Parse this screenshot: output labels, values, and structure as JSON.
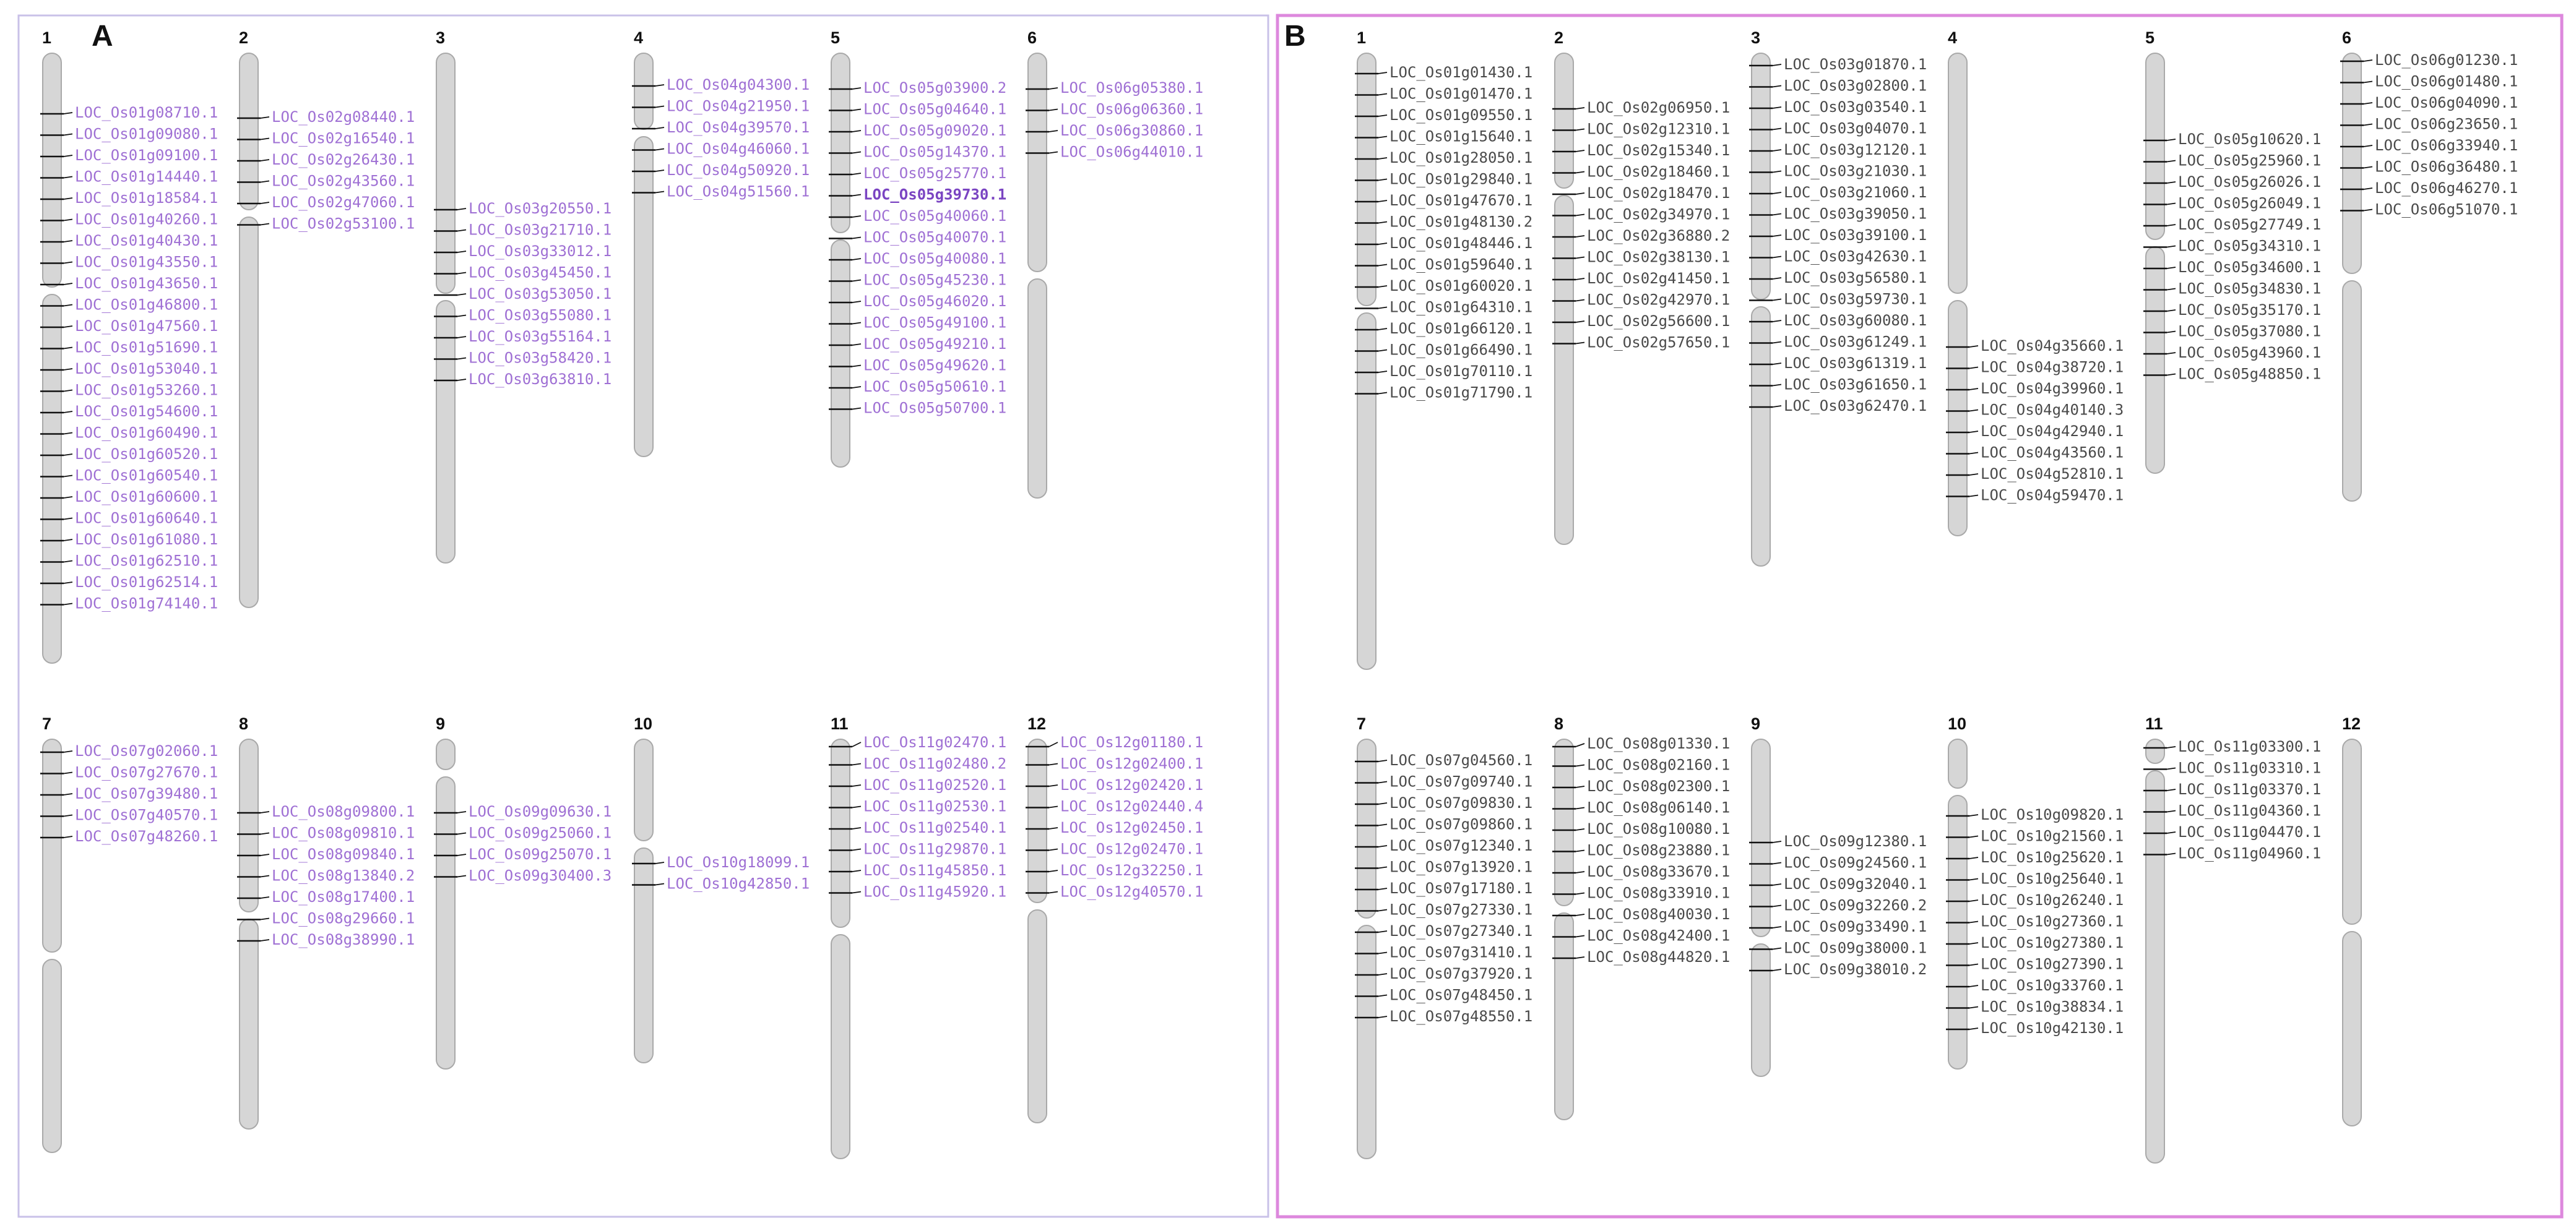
{
  "colors": {
    "panel_a_label": "#9f70d4",
    "panel_a_highlight": "#7a44c2",
    "panel_b_label": "#4a4a4a",
    "panel_a_border": "#c9c1e8",
    "panel_b_border": "#dd88dd",
    "chromosome_fill": "#d6d6d6",
    "chromosome_edge": "#a9a9a9",
    "tick": "#111111"
  },
  "panels": [
    {
      "letter": "A",
      "label_color": "#9f70d4",
      "chromosomes": [
        {
          "number": "1",
          "genes": [
            "LOC_Os01g08710.1",
            "LOC_Os01g09080.1",
            "LOC_Os01g09100.1",
            "LOC_Os01g14440.1",
            "LOC_Os01g18584.1",
            "LOC_Os01g40260.1",
            "LOC_Os01g40430.1",
            "LOC_Os01g43550.1",
            "LOC_Os01g43650.1",
            "LOC_Os01g46800.1",
            "LOC_Os01g47560.1",
            "LOC_Os01g51690.1",
            "LOC_Os01g53040.1",
            "LOC_Os01g53260.1",
            "LOC_Os01g54600.1",
            "LOC_Os01g60490.1",
            "LOC_Os01g60520.1",
            "LOC_Os01g60540.1",
            "LOC_Os01g60600.1",
            "LOC_Os01g60640.1",
            "LOC_Os01g61080.1",
            "LOC_Os01g62510.1",
            "LOC_Os01g62514.1",
            "LOC_Os01g74140.1"
          ]
        },
        {
          "number": "2",
          "genes": [
            "LOC_Os02g08440.1",
            "LOC_Os02g16540.1",
            "LOC_Os02g26430.1",
            "LOC_Os02g43560.1",
            "LOC_Os02g47060.1",
            "LOC_Os02g53100.1"
          ]
        },
        {
          "number": "3",
          "genes": [
            "LOC_Os03g20550.1",
            "LOC_Os03g21710.1",
            "LOC_Os03g33012.1",
            "LOC_Os03g45450.1",
            "LOC_Os03g53050.1",
            "LOC_Os03g55080.1",
            "LOC_Os03g55164.1",
            "LOC_Os03g58420.1",
            "LOC_Os03g63810.1"
          ]
        },
        {
          "number": "4",
          "genes": [
            "LOC_Os04g04300.1",
            "LOC_Os04g21950.1",
            "LOC_Os04g39570.1",
            "LOC_Os04g46060.1",
            "LOC_Os04g50920.1",
            "LOC_Os04g51560.1"
          ]
        },
        {
          "number": "5",
          "genes": [
            "LOC_Os05g03900.2",
            "LOC_Os05g04640.1",
            "LOC_Os05g09020.1",
            "LOC_Os05g14370.1",
            "LOC_Os05g25770.1",
            "LOC_Os05g39730.1",
            "LOC_Os05g40060.1",
            "LOC_Os05g40070.1",
            "LOC_Os05g40080.1",
            "LOC_Os05g45230.1",
            "LOC_Os05g46020.1",
            "LOC_Os05g49100.1",
            "LOC_Os05g49210.1",
            "LOC_Os05g49620.1",
            "LOC_Os05g50610.1",
            "LOC_Os05g50700.1"
          ]
        },
        {
          "number": "6",
          "genes": [
            "LOC_Os06g05380.1",
            "LOC_Os06g06360.1",
            "LOC_Os06g30860.1",
            "LOC_Os06g44010.1"
          ]
        },
        {
          "number": "7",
          "genes": [
            "LOC_Os07g02060.1",
            "LOC_Os07g27670.1",
            "LOC_Os07g39480.1",
            "LOC_Os07g40570.1",
            "LOC_Os07g48260.1"
          ]
        },
        {
          "number": "8",
          "genes": [
            "LOC_Os08g09800.1",
            "LOC_Os08g09810.1",
            "LOC_Os08g09840.1",
            "LOC_Os08g13840.2",
            "LOC_Os08g17400.1",
            "LOC_Os08g29660.1",
            "LOC_Os08g38990.1"
          ]
        },
        {
          "number": "9",
          "genes": [
            "LOC_Os09g09630.1",
            "LOC_Os09g25060.1",
            "LOC_Os09g25070.1",
            "LOC_Os09g30400.3"
          ]
        },
        {
          "number": "10",
          "genes": [
            "LOC_Os10g18099.1",
            "LOC_Os10g42850.1"
          ]
        },
        {
          "number": "11",
          "genes": [
            "LOC_Os11g02470.1",
            "LOC_Os11g02480.2",
            "LOC_Os11g02520.1",
            "LOC_Os11g02530.1",
            "LOC_Os11g02540.1",
            "LOC_Os11g29870.1",
            "LOC_Os11g45850.1",
            "LOC_Os11g45920.1"
          ]
        },
        {
          "number": "12",
          "genes": [
            "LOC_Os12g01180.1",
            "LOC_Os12g02400.1",
            "LOC_Os12g02420.1",
            "LOC_Os12g02440.4",
            "LOC_Os12g02450.1",
            "LOC_Os12g02470.1",
            "LOC_Os12g32250.1",
            "LOC_Os12g40570.1"
          ]
        }
      ]
    },
    {
      "letter": "B",
      "label_color": "#4a4a4a",
      "chromosomes": [
        {
          "number": "1",
          "genes": [
            "LOC_Os01g01430.1",
            "LOC_Os01g01470.1",
            "LOC_Os01g09550.1",
            "LOC_Os01g15640.1",
            "LOC_Os01g28050.1",
            "LOC_Os01g29840.1",
            "LOC_Os01g47670.1",
            "LOC_Os01g48130.2",
            "LOC_Os01g48446.1",
            "LOC_Os01g59640.1",
            "LOC_Os01g60020.1",
            "LOC_Os01g64310.1",
            "LOC_Os01g66120.1",
            "LOC_Os01g66490.1",
            "LOC_Os01g70110.1",
            "LOC_Os01g71790.1"
          ]
        },
        {
          "number": "2",
          "genes": [
            "LOC_Os02g06950.1",
            "LOC_Os02g12310.1",
            "LOC_Os02g15340.1",
            "LOC_Os02g18460.1",
            "LOC_Os02g18470.1",
            "LOC_Os02g34970.1",
            "LOC_Os02g36880.2",
            "LOC_Os02g38130.1",
            "LOC_Os02g41450.1",
            "LOC_Os02g42970.1",
            "LOC_Os02g56600.1",
            "LOC_Os02g57650.1"
          ]
        },
        {
          "number": "3",
          "genes": [
            "LOC_Os03g01870.1",
            "LOC_Os03g02800.1",
            "LOC_Os03g03540.1",
            "LOC_Os03g04070.1",
            "LOC_Os03g12120.1",
            "LOC_Os03g21030.1",
            "LOC_Os03g21060.1",
            "LOC_Os03g39050.1",
            "LOC_Os03g39100.1",
            "LOC_Os03g42630.1",
            "LOC_Os03g56580.1",
            "LOC_Os03g59730.1",
            "LOC_Os03g60080.1",
            "LOC_Os03g61249.1",
            "LOC_Os03g61319.1",
            "LOC_Os03g61650.1",
            "LOC_Os03g62470.1"
          ]
        },
        {
          "number": "4",
          "genes": [
            "LOC_Os04g35660.1",
            "LOC_Os04g38720.1",
            "LOC_Os04g39960.1",
            "LOC_Os04g40140.3",
            "LOC_Os04g42940.1",
            "LOC_Os04g43560.1",
            "LOC_Os04g52810.1",
            "LOC_Os04g59470.1"
          ]
        },
        {
          "number": "5",
          "genes": [
            "LOC_Os05g10620.1",
            "LOC_Os05g25960.1",
            "LOC_Os05g26026.1",
            "LOC_Os05g26049.1",
            "LOC_Os05g27749.1",
            "LOC_Os05g34310.1",
            "LOC_Os05g34600.1",
            "LOC_Os05g34830.1",
            "LOC_Os05g35170.1",
            "LOC_Os05g37080.1",
            "LOC_Os05g43960.1",
            "LOC_Os05g48850.1"
          ]
        },
        {
          "number": "6",
          "genes": [
            "LOC_Os06g01230.1",
            "LOC_Os06g01480.1",
            "LOC_Os06g04090.1",
            "LOC_Os06g23650.1",
            "LOC_Os06g33940.1",
            "LOC_Os06g36480.1",
            "LOC_Os06g46270.1",
            "LOC_Os06g51070.1"
          ]
        },
        {
          "number": "7",
          "genes": [
            "LOC_Os07g04560.1",
            "LOC_Os07g09740.1",
            "LOC_Os07g09830.1",
            "LOC_Os07g09860.1",
            "LOC_Os07g12340.1",
            "LOC_Os07g13920.1",
            "LOC_Os07g17180.1",
            "LOC_Os07g27330.1",
            "LOC_Os07g27340.1",
            "LOC_Os07g31410.1",
            "LOC_Os07g37920.1",
            "LOC_Os07g48450.1",
            "LOC_Os07g48550.1"
          ]
        },
        {
          "number": "8",
          "genes": [
            "LOC_Os08g01330.1",
            "LOC_Os08g02160.1",
            "LOC_Os08g02300.1",
            "LOC_Os08g06140.1",
            "LOC_Os08g10080.1",
            "LOC_Os08g23880.1",
            "LOC_Os08g33670.1",
            "LOC_Os08g33910.1",
            "LOC_Os08g40030.1",
            "LOC_Os08g42400.1",
            "LOC_Os08g44820.1"
          ]
        },
        {
          "number": "9",
          "genes": [
            "LOC_Os09g12380.1",
            "LOC_Os09g24560.1",
            "LOC_Os09g32040.1",
            "LOC_Os09g32260.2",
            "LOC_Os09g33490.1",
            "LOC_Os09g38000.1",
            "LOC_Os09g38010.2"
          ]
        },
        {
          "number": "10",
          "genes": [
            "LOC_Os10g09820.1",
            "LOC_Os10g21560.1",
            "LOC_Os10g25620.1",
            "LOC_Os10g25640.1",
            "LOC_Os10g26240.1",
            "LOC_Os10g27360.1",
            "LOC_Os10g27380.1",
            "LOC_Os10g27390.1",
            "LOC_Os10g33760.1",
            "LOC_Os10g38834.1",
            "LOC_Os10g42130.1"
          ]
        },
        {
          "number": "11",
          "genes": [
            "LOC_Os11g03300.1",
            "LOC_Os11g03310.1",
            "LOC_Os11g03370.1",
            "LOC_Os11g04360.1",
            "LOC_Os11g04470.1",
            "LOC_Os11g04960.1"
          ]
        },
        {
          "number": "12",
          "genes": []
        }
      ]
    }
  ]
}
